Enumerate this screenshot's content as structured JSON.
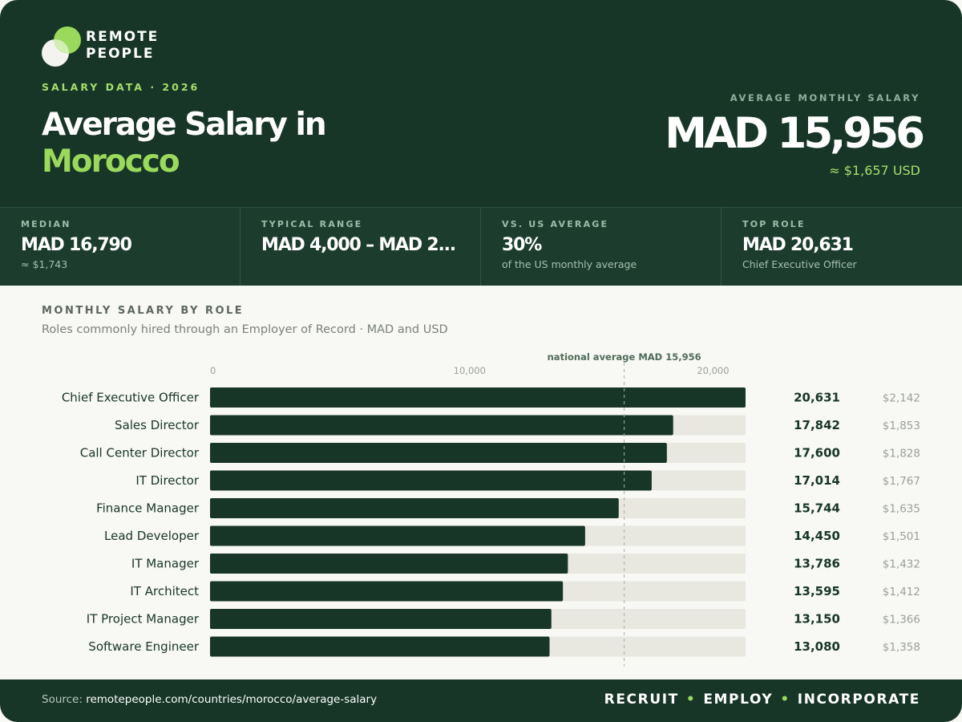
{
  "brand": {
    "name_line1": "REMOTE",
    "name_line2": "PEOPLE",
    "icon": "remote-people-logo-icon",
    "accent": "#9ad95b",
    "dark": "#173628"
  },
  "header": {
    "eyebrow": "SALARY DATA · 2026",
    "title_line1": "Average Salary in",
    "title_line2": "Morocco",
    "avg_label": "AVERAGE MONTHLY SALARY",
    "avg_value": "MAD 15,956",
    "avg_usd": "≈ $1,657 USD"
  },
  "stats": [
    {
      "label": "MEDIAN",
      "value": "MAD 16,790",
      "sub": "≈ $1,743"
    },
    {
      "label": "TYPICAL RANGE",
      "value": "MAD 4,000 – MAD 2...",
      "sub": ""
    },
    {
      "label": "VS. US AVERAGE",
      "value": "30%",
      "sub": "of the US monthly average"
    },
    {
      "label": "TOP ROLE",
      "value": "MAD 20,631",
      "sub": "Chief Executive Officer"
    }
  ],
  "chart_section": {
    "title": "MONTHLY SALARY BY ROLE",
    "subtitle": "Roles commonly hired through an Employer of Record · MAD and USD"
  },
  "chart_data": {
    "type": "bar",
    "orientation": "horizontal",
    "categories": [
      "Chief Executive Officer",
      "Sales Director",
      "Call Center Director",
      "IT Director",
      "Finance Manager",
      "Lead Developer",
      "IT Manager",
      "IT Architect",
      "IT Project Manager",
      "Software Engineer"
    ],
    "values": [
      20631,
      17842,
      17600,
      17014,
      15744,
      14450,
      13786,
      13595,
      13150,
      13080
    ],
    "value_labels": [
      "20,631",
      "17,842",
      "17,600",
      "17,014",
      "15,744",
      "14,450",
      "13,786",
      "13,595",
      "13,150",
      "13,080"
    ],
    "usd_labels": [
      "$2,142",
      "$1,853",
      "$1,828",
      "$1,767",
      "$1,635",
      "$1,501",
      "$1,432",
      "$1,412",
      "$1,366",
      "$1,358"
    ],
    "xlim": [
      0,
      20631
    ],
    "xticks": [
      0,
      10000,
      20000
    ],
    "xtick_labels": [
      "0",
      "10,000",
      "20,000"
    ],
    "reference_line": {
      "value": 15956,
      "label": "national average MAD 15,956"
    },
    "colors": {
      "bar": "#173628",
      "track": "#e8e8e0",
      "reference": "#a9aea8"
    }
  },
  "footer": {
    "source_prefix": "Source: ",
    "source_url": "remotepeople.com/countries/morocco/average-salary",
    "tag1": "RECRUIT",
    "tag2": "EMPLOY",
    "tag3": "INCORPORATE",
    "separator": "•"
  }
}
